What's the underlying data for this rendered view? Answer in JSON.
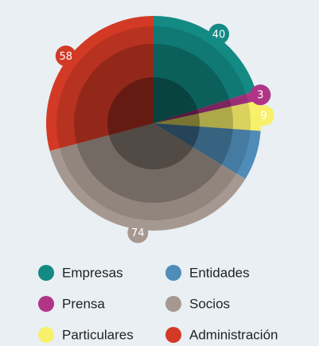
{
  "chart_data": {
    "type": "pie",
    "categories": [
      "Empresas",
      "Prensa",
      "Particulares",
      "Entidades",
      "Socios",
      "Administración"
    ],
    "values": [
      40,
      3,
      9,
      15,
      74,
      58
    ],
    "value_labels": [
      "40",
      "3",
      "9",
      null,
      "74",
      "58"
    ],
    "colors": [
      "#138a84",
      "#b03587",
      "#f8f06a",
      "#4f8cb8",
      "#a59890",
      "#d23a26"
    ]
  }
}
